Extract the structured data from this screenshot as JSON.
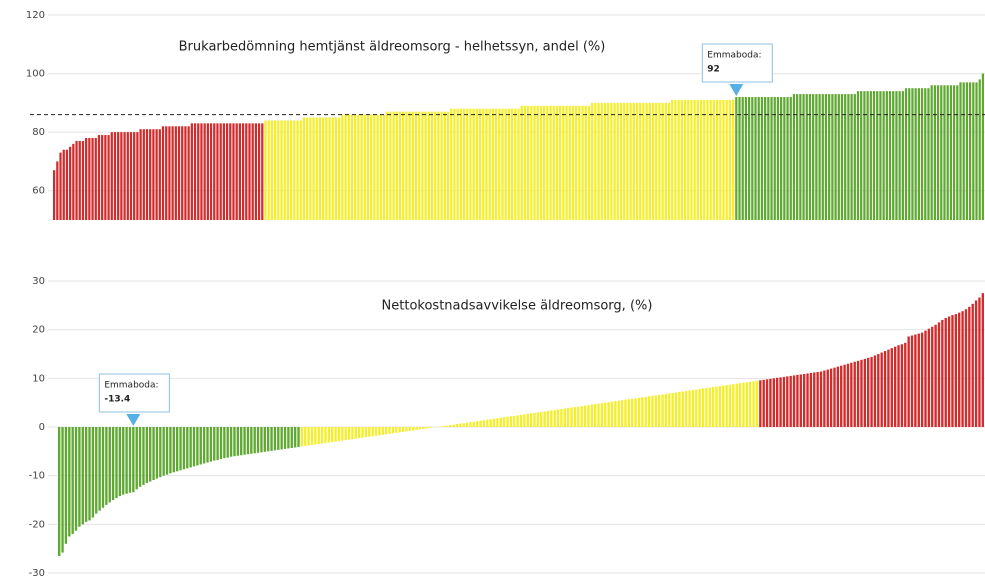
{
  "chart_data": [
    {
      "type": "bar",
      "title": "Brukarbedömning hemtjänst äldreomsorg - helhetssyn, andel (%)",
      "ylim": [
        50,
        120
      ],
      "yticks": [
        60,
        80,
        100,
        120
      ],
      "grid": true,
      "reference_line": 86,
      "annotation": {
        "label": "Emmaboda:",
        "value": 92
      },
      "series": [
        {
          "color": "#d12b2b",
          "values": [
            67,
            70,
            73,
            74,
            74,
            75,
            76,
            77,
            77,
            77,
            78,
            78,
            78,
            78,
            79,
            79,
            79,
            79,
            80,
            80,
            80,
            80,
            80,
            80,
            80,
            80,
            80,
            81,
            81,
            81,
            81,
            81,
            81,
            81,
            82,
            82,
            82,
            82,
            82,
            82,
            82,
            82,
            82,
            83,
            83,
            83,
            83,
            83,
            83,
            83,
            83,
            83,
            83,
            83,
            83,
            83,
            83,
            83,
            83,
            83,
            83,
            83,
            83,
            83,
            83,
            83
          ]
        },
        {
          "color": "#f4ee2b",
          "values": [
            84,
            84,
            84,
            84,
            84,
            84,
            84,
            84,
            84,
            84,
            84,
            84,
            85,
            85,
            85,
            85,
            85,
            85,
            85,
            85,
            85,
            85,
            85,
            85,
            86,
            86,
            86,
            86,
            86,
            86,
            86,
            86,
            86,
            86,
            86,
            86,
            86,
            86,
            87,
            87,
            87,
            87,
            87,
            87,
            87,
            87,
            87,
            87,
            87,
            87,
            87,
            87,
            87,
            87,
            87,
            87,
            87,
            87,
            88,
            88,
            88,
            88,
            88,
            88,
            88,
            88,
            88,
            88,
            88,
            88,
            88,
            88,
            88,
            88,
            88,
            88,
            88,
            88,
            88,
            88,
            89,
            89,
            89,
            89,
            89,
            89,
            89,
            89,
            89,
            89,
            89,
            89,
            89,
            89,
            89,
            89,
            89,
            89,
            89,
            89,
            89,
            89,
            90,
            90,
            90,
            90,
            90,
            90,
            90,
            90,
            90,
            90,
            90,
            90,
            90,
            90,
            90,
            90,
            90,
            90,
            90,
            90,
            90,
            90,
            90,
            90,
            90,
            91,
            91,
            91,
            91,
            91,
            91,
            91,
            91,
            91,
            91,
            91,
            91,
            91,
            91,
            91,
            91,
            91,
            91,
            91,
            91
          ]
        },
        {
          "color": "#5fa832",
          "values": [
            92,
            92,
            92,
            92,
            92,
            92,
            92,
            92,
            92,
            92,
            92,
            92,
            92,
            92,
            92,
            92,
            92,
            92,
            93,
            93,
            93,
            93,
            93,
            93,
            93,
            93,
            93,
            93,
            93,
            93,
            93,
            93,
            93,
            93,
            93,
            93,
            93,
            93,
            94,
            94,
            94,
            94,
            94,
            94,
            94,
            94,
            94,
            94,
            94,
            94,
            94,
            94,
            94,
            95,
            95,
            95,
            95,
            95,
            95,
            95,
            95,
            96,
            96,
            96,
            96,
            96,
            96,
            96,
            96,
            96,
            97,
            97,
            97,
            97,
            97,
            97,
            98,
            100
          ]
        }
      ]
    },
    {
      "type": "bar",
      "title": "Nettokostnadsavvikelse äldreomsorg, (%)",
      "ylim": [
        -30,
        30
      ],
      "yticks": [
        30,
        20,
        10,
        0,
        -10,
        -20,
        -30
      ],
      "grid": true,
      "annotation": {
        "label": "Emmaboda:",
        "value": -13.4
      },
      "series": [
        {
          "color": "#5fa832",
          "values": [
            -26.5,
            -25.8,
            -24,
            -22.5,
            -22,
            -21.3,
            -20.5,
            -20,
            -19.5,
            -19.2,
            -18.6,
            -17.8,
            -17.2,
            -16.6,
            -16,
            -15.5,
            -15,
            -14.6,
            -14.2,
            -13.9,
            -13.7,
            -13.5,
            -13.4,
            -12.8,
            -12.3,
            -11.9,
            -11.5,
            -11.2,
            -10.9,
            -10.6,
            -10.3,
            -10,
            -9.8,
            -9.5,
            -9.3,
            -9.1,
            -8.9,
            -8.7,
            -8.5,
            -8.3,
            -8.1,
            -7.9,
            -7.7,
            -7.5,
            -7.3,
            -7.1,
            -6.9,
            -6.8,
            -6.6,
            -6.4,
            -6.3,
            -6.1,
            -6,
            -5.9,
            -5.8,
            -5.7,
            -5.6,
            -5.5,
            -5.4,
            -5.3,
            -5.2,
            -5.1,
            -5,
            -4.9,
            -4.8,
            -4.7,
            -4.6,
            -4.5,
            -4.4,
            -4.3,
            -4.2,
            -4.1
          ]
        },
        {
          "color": "#f4ee2b",
          "values": [
            -4,
            -3.9,
            -3.8,
            -3.7,
            -3.6,
            -3.5,
            -3.4,
            -3.3,
            -3.2,
            -3.1,
            -3,
            -2.9,
            -2.8,
            -2.7,
            -2.6,
            -2.5,
            -2.4,
            -2.3,
            -2.2,
            -2.1,
            -2,
            -1.9,
            -1.8,
            -1.7,
            -1.6,
            -1.5,
            -1.4,
            -1.3,
            -1.2,
            -1.1,
            -1,
            -0.9,
            -0.8,
            -0.7,
            -0.6,
            -0.5,
            -0.4,
            -0.3,
            -0.2,
            -0.1,
            0,
            0.1,
            0.2,
            0.3,
            0.4,
            0.5,
            0.6,
            0.7,
            0.8,
            0.9,
            1,
            1.1,
            1.2,
            1.3,
            1.4,
            1.5,
            1.6,
            1.7,
            1.8,
            1.9,
            2,
            2.1,
            2.2,
            2.3,
            2.4,
            2.5,
            2.6,
            2.7,
            2.8,
            2.9,
            3,
            3.1,
            3.2,
            3.3,
            3.4,
            3.5,
            3.6,
            3.7,
            3.8,
            3.9,
            4,
            4.1,
            4.2,
            4.3,
            4.4,
            4.5,
            4.6,
            4.7,
            4.8,
            4.9,
            5,
            5.1,
            5.2,
            5.3,
            5.4,
            5.5,
            5.6,
            5.7,
            5.8,
            5.9,
            6,
            6.1,
            6.2,
            6.3,
            6.4,
            6.5,
            6.6,
            6.7,
            6.8,
            6.9,
            7,
            7.1,
            7.2,
            7.3,
            7.4,
            7.5,
            7.6,
            7.7,
            7.8,
            7.9,
            8,
            8.1,
            8.2,
            8.3,
            8.4,
            8.5,
            8.6,
            8.7,
            8.8,
            8.9,
            9,
            9.1,
            9.2,
            9.3,
            9.4,
            9.5
          ]
        },
        {
          "color": "#d12b2b",
          "values": [
            9.6,
            9.7,
            9.8,
            9.9,
            10,
            10.1,
            10.2,
            10.3,
            10.4,
            10.5,
            10.6,
            10.7,
            10.8,
            10.9,
            11,
            11.1,
            11.2,
            11.3,
            11.4,
            11.6,
            11.8,
            12,
            12.2,
            12.4,
            12.6,
            12.8,
            13,
            13.2,
            13.4,
            13.6,
            13.8,
            14,
            14.2,
            14.4,
            14.7,
            15,
            15.3,
            15.6,
            15.9,
            16.2,
            16.5,
            16.8,
            17,
            17.3,
            18.6,
            18.8,
            19,
            19.2,
            19.4,
            19.8,
            20.2,
            20.6,
            21,
            21.5,
            22,
            22.4,
            22.7,
            23,
            23.2,
            23.5,
            23.8,
            24.2,
            24.7,
            25.3,
            26,
            26.6,
            27.5
          ]
        }
      ]
    }
  ]
}
